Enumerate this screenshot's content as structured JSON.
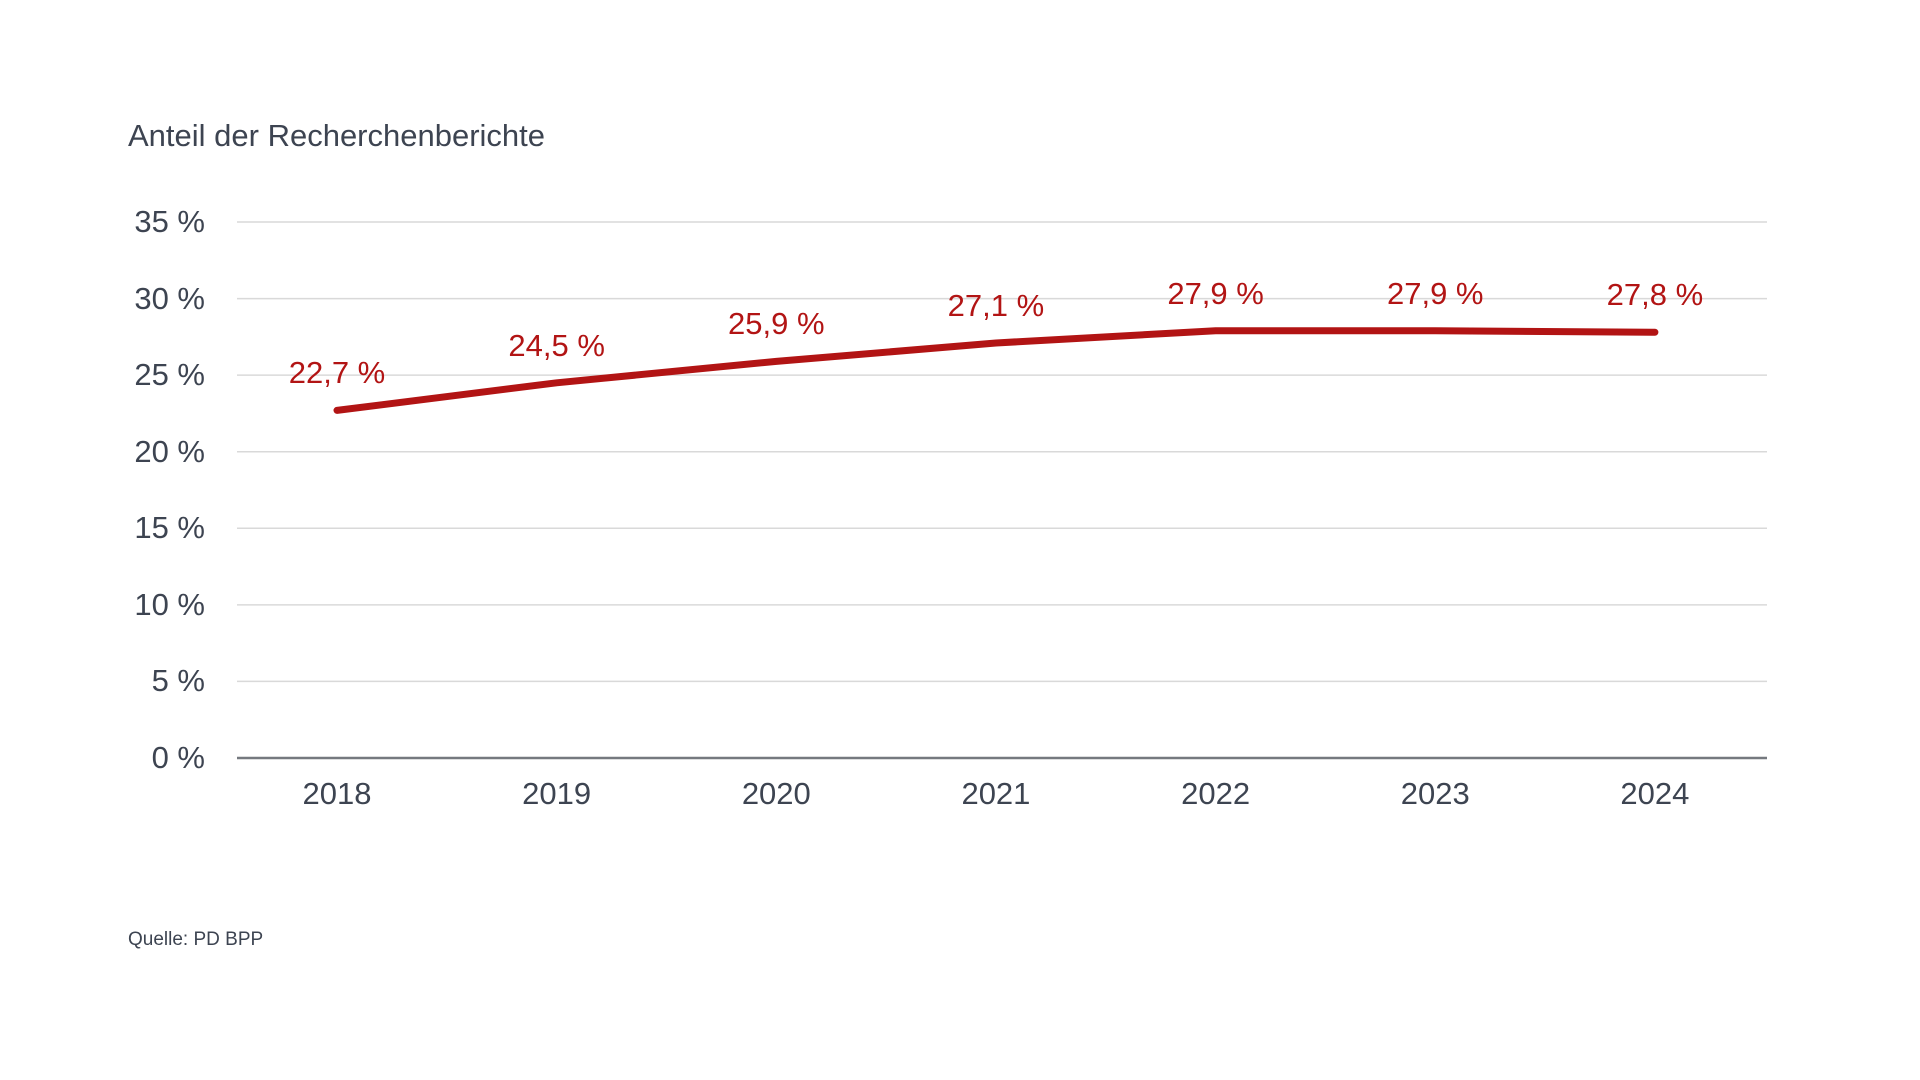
{
  "chart": {
    "title": "Anteil der Recherchenberichte",
    "source": "Quelle: PD BPP"
  },
  "colors": {
    "line": "#b21414",
    "value_label": "#b21414",
    "text": "#3d4451",
    "grid": "#d9d9d9",
    "axis": "#75797f",
    "background": "#ffffff"
  },
  "chart_data": {
    "type": "line",
    "title": "Anteil der Recherchenberichte",
    "xlabel": "",
    "ylabel": "",
    "categories": [
      "2018",
      "2019",
      "2020",
      "2021",
      "2022",
      "2023",
      "2024"
    ],
    "values": [
      22.7,
      24.5,
      25.9,
      27.1,
      27.9,
      27.9,
      27.8
    ],
    "value_labels": [
      "22,7 %",
      "24,5 %",
      "25,9 %",
      "27,1 %",
      "27,9 %",
      "27,9 %",
      "27,8 %"
    ],
    "ylim": [
      0,
      35
    ],
    "ytick_step": 5,
    "ytick_labels": [
      "0 %",
      "5 %",
      "10 %",
      "15 %",
      "20 %",
      "25 %",
      "30 %",
      "35 %"
    ],
    "grid": true,
    "legend": "none",
    "source": "Quelle: PD BPP"
  }
}
